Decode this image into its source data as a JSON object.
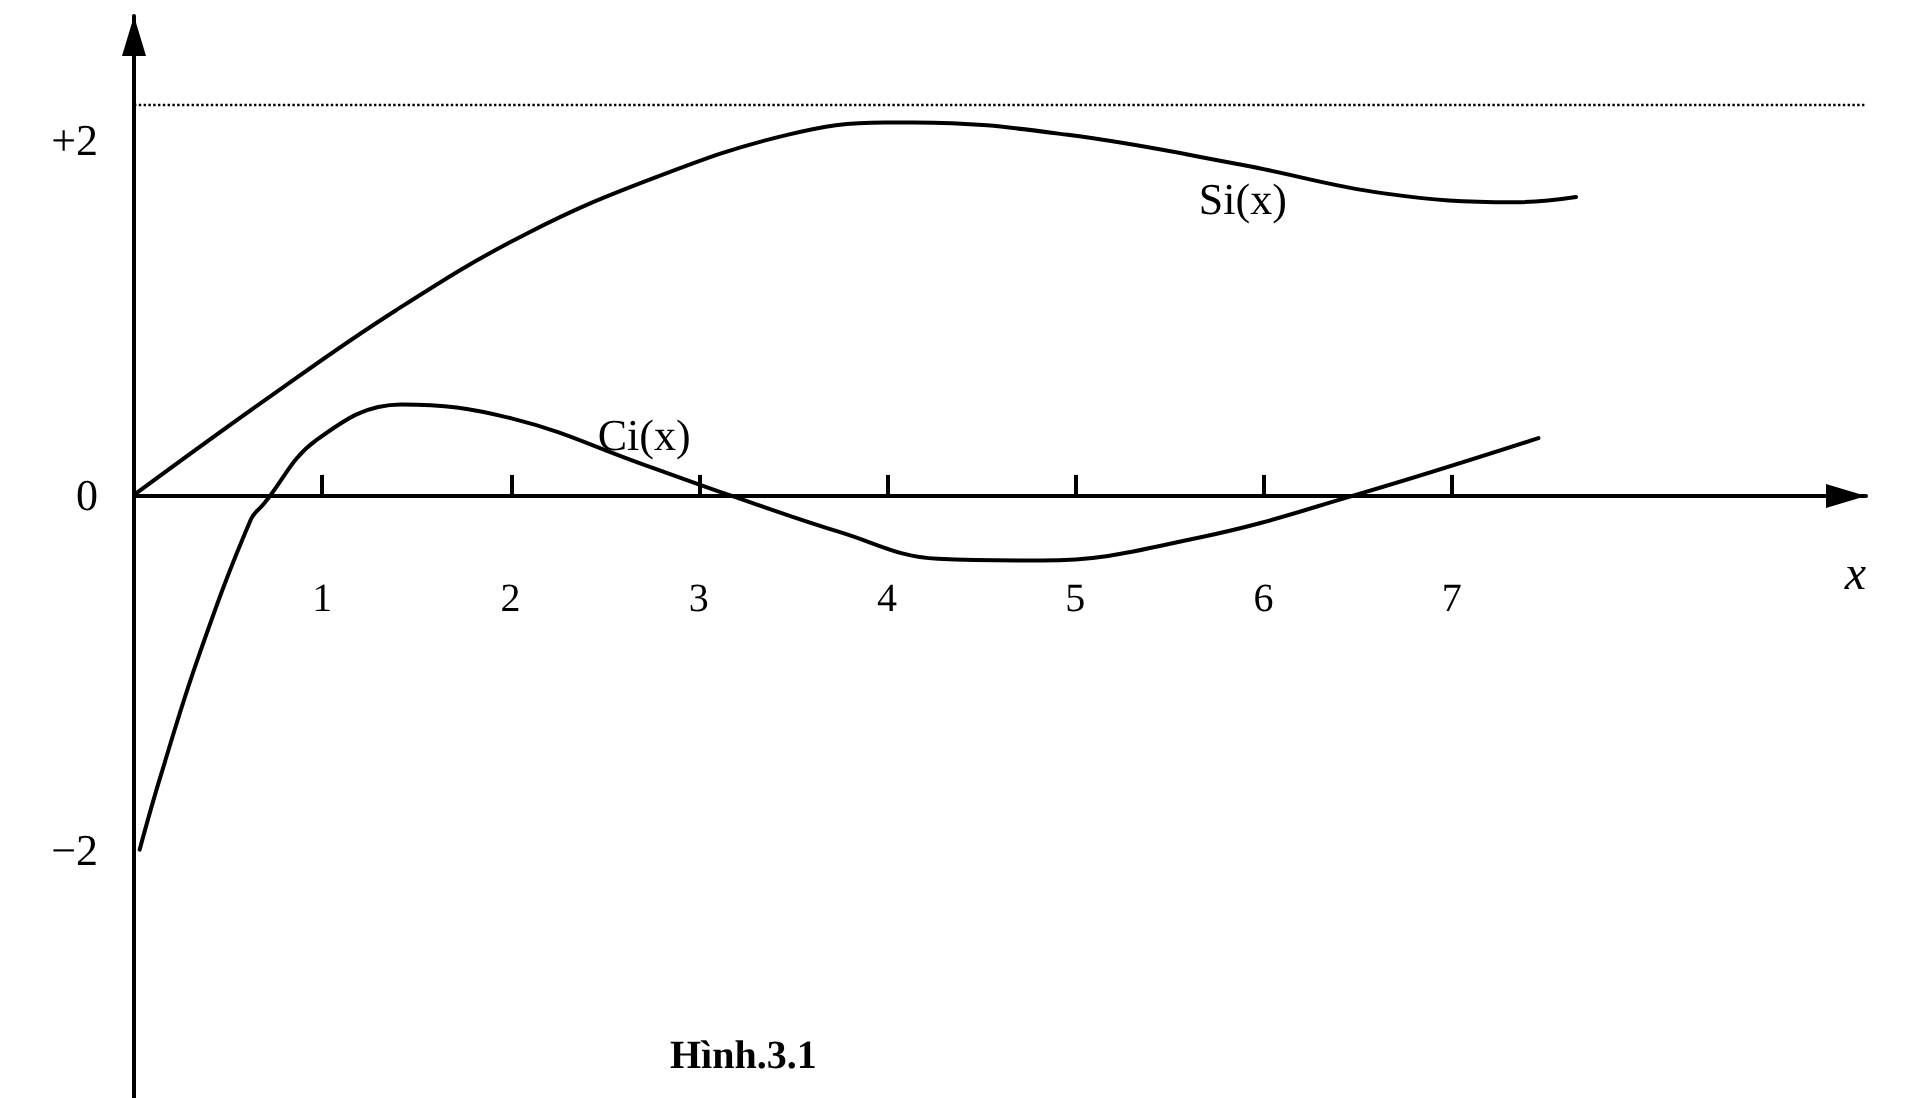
{
  "chart_data": {
    "type": "line",
    "title": "Hình.3.1",
    "xlabel": "x",
    "xlim": [
      0,
      9.2
    ],
    "xticks": [
      1,
      2,
      3,
      4,
      5,
      6,
      7
    ],
    "ylim": [
      -3.4,
      2.7
    ],
    "yticks": [
      {
        "value": -2,
        "label": "−2"
      },
      0,
      {
        "value": 2,
        "label": "+2"
      }
    ],
    "grid": false,
    "marker": "none",
    "line_style": "solid",
    "ref_lines": [
      {
        "axis": "y",
        "value": 2.2,
        "color": "#000000",
        "line_style": "dotted"
      }
    ],
    "series": [
      {
        "name": "Si(x)",
        "color": "#000000",
        "x": [
          0,
          0.69,
          1.39,
          2.08,
          2.77,
          3.47,
          3.99,
          4.14,
          4.96,
          5.89,
          6.64,
          7.33,
          7.66
        ],
        "values": [
          0,
          0.53,
          1.04,
          1.47,
          1.79,
          2.03,
          2.1,
          2.1,
          2.03,
          1.86,
          1.7,
          1.65,
          1.68
        ]
      },
      {
        "name": "Ci(x)",
        "color": "#000000",
        "x": [
          0.03,
          0.14,
          0.34,
          0.62,
          0.69,
          0.97,
          1.42,
          2.01,
          2.71,
          3.16,
          3.75,
          4.27,
          4.82,
          5.66,
          6.49,
          7.46
        ],
        "values": [
          -2,
          -1.59,
          -0.92,
          -0.14,
          -0.05,
          0.31,
          0.51,
          0.43,
          0.17,
          0,
          -0.21,
          -0.36,
          -0.37,
          -0.24,
          0,
          0.32
        ]
      }
    ]
  }
}
